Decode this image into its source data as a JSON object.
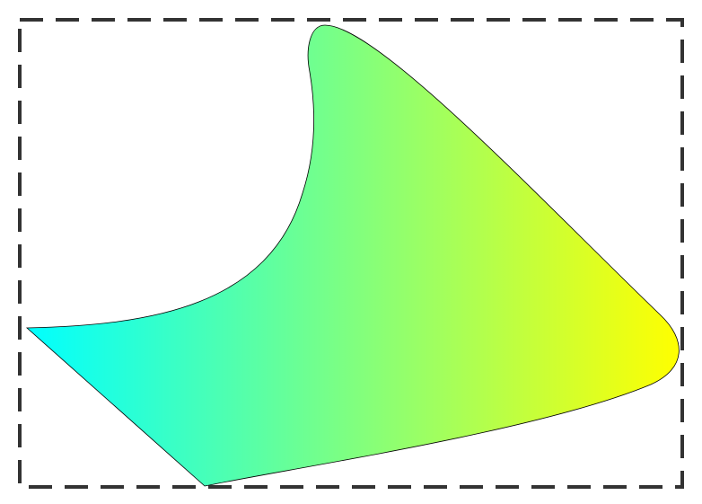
{
  "diagram": {
    "frame": {
      "style": "dashed",
      "stroke_color": "#333333"
    },
    "shape": {
      "type": "curved-polygon",
      "fill_gradient": {
        "direction": "left-to-right",
        "start_color": "#00FFFF",
        "end_color": "#FFFF00"
      },
      "outline_color": "#000000"
    }
  }
}
